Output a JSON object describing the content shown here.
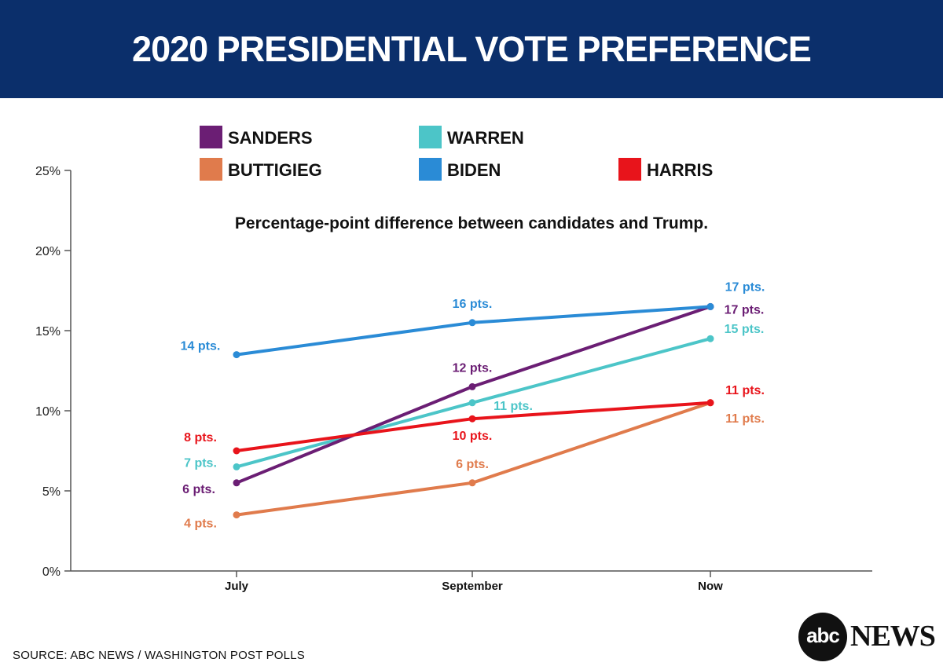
{
  "header": {
    "title": "2020 PRESIDENTIAL VOTE PREFERENCE"
  },
  "footer": {
    "source": "SOURCE: ABC NEWS  / WASHINGTON POST POLLS",
    "logo_mark": "abc",
    "logo_word": "NEWS"
  },
  "chart_data": {
    "type": "line",
    "title": "Percentage-point difference between candidates and Trump.",
    "xlabel": "",
    "ylabel": "",
    "categories": [
      "July",
      "September",
      "Now"
    ],
    "ylim": [
      0,
      25
    ],
    "yticks": [
      0,
      5,
      10,
      15,
      20,
      25
    ],
    "ytick_labels": [
      "0%",
      "5%",
      "10%",
      "15%",
      "20%",
      "25%"
    ],
    "grid": false,
    "legend_position": "top",
    "series": [
      {
        "name": "SANDERS",
        "color": "#6b1e74",
        "values": [
          5.5,
          11.5,
          16.5
        ],
        "labels": [
          "6 pts.",
          "12 pts.",
          "17 pts."
        ]
      },
      {
        "name": "WARREN",
        "color": "#4cc5c8",
        "values": [
          6.5,
          10.5,
          14.5
        ],
        "labels": [
          "7 pts.",
          "11 pts.",
          "15 pts."
        ]
      },
      {
        "name": "BUTTIGIEG",
        "color": "#e07b4c",
        "values": [
          3.5,
          5.5,
          10.5
        ],
        "labels": [
          "4 pts.",
          "6 pts.",
          "11 pts."
        ]
      },
      {
        "name": "BIDEN",
        "color": "#2a8bd6",
        "values": [
          13.5,
          15.5,
          16.5
        ],
        "labels": [
          "14 pts.",
          "16 pts.",
          "17 pts."
        ]
      },
      {
        "name": "HARRIS",
        "color": "#e8141b",
        "values": [
          7.5,
          9.5,
          10.5
        ],
        "labels": [
          "8 pts.",
          "10 pts.",
          "11 pts."
        ]
      }
    ]
  }
}
